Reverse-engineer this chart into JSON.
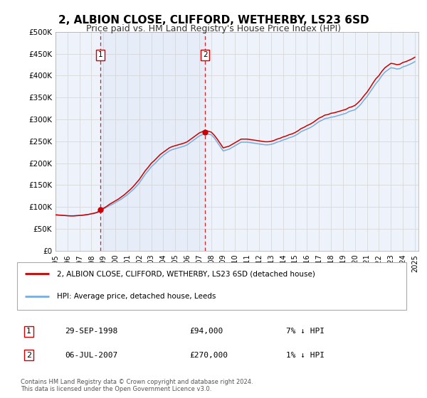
{
  "title": "2, ALBION CLOSE, CLIFFORD, WETHERBY, LS23 6SD",
  "subtitle": "Price paid vs. HM Land Registry's House Price Index (HPI)",
  "title_fontsize": 11,
  "subtitle_fontsize": 9,
  "background_color": "#ffffff",
  "plot_bg_color": "#eef2fa",
  "grid_color": "#d8d8d8",
  "ylim": [
    0,
    500000
  ],
  "ytick_step": 50000,
  "legend_label_red": "2, ALBION CLOSE, CLIFFORD, WETHERBY, LS23 6SD (detached house)",
  "legend_label_blue": "HPI: Average price, detached house, Leeds",
  "transaction1_date": "29-SEP-1998",
  "transaction1_price": 94000,
  "transaction1_hpi": "7% ↓ HPI",
  "transaction2_date": "06-JUL-2007",
  "transaction2_price": 270000,
  "transaction2_hpi": "1% ↓ HPI",
  "marker1_x": 1998.75,
  "marker1_y": 94000,
  "marker2_x": 2007.5,
  "marker2_y": 270000,
  "vline1_x": 1998.75,
  "vline2_x": 2007.5,
  "red_color": "#cc0000",
  "blue_color": "#7aaddc",
  "footer_text": "Contains HM Land Registry data © Crown copyright and database right 2024.\nThis data is licensed under the Open Government Licence v3.0.",
  "xmin": 1995.0,
  "xmax": 2025.3,
  "hpi_x": [
    1995.0,
    1995.25,
    1995.5,
    1995.75,
    1996.0,
    1996.25,
    1996.5,
    1996.75,
    1997.0,
    1997.25,
    1997.5,
    1997.75,
    1998.0,
    1998.25,
    1998.5,
    1998.75,
    1999.0,
    1999.25,
    1999.5,
    1999.75,
    2000.0,
    2000.25,
    2000.5,
    2000.75,
    2001.0,
    2001.25,
    2001.5,
    2001.75,
    2002.0,
    2002.25,
    2002.5,
    2002.75,
    2003.0,
    2003.25,
    2003.5,
    2003.75,
    2004.0,
    2004.25,
    2004.5,
    2004.75,
    2005.0,
    2005.25,
    2005.5,
    2005.75,
    2006.0,
    2006.25,
    2006.5,
    2006.75,
    2007.0,
    2007.25,
    2007.5,
    2007.75,
    2008.0,
    2008.25,
    2008.5,
    2008.75,
    2009.0,
    2009.25,
    2009.5,
    2009.75,
    2010.0,
    2010.25,
    2010.5,
    2010.75,
    2011.0,
    2011.25,
    2011.5,
    2011.75,
    2012.0,
    2012.25,
    2012.5,
    2012.75,
    2013.0,
    2013.25,
    2013.5,
    2013.75,
    2014.0,
    2014.25,
    2014.5,
    2014.75,
    2015.0,
    2015.25,
    2015.5,
    2015.75,
    2016.0,
    2016.25,
    2016.5,
    2016.75,
    2017.0,
    2017.25,
    2017.5,
    2017.75,
    2018.0,
    2018.25,
    2018.5,
    2018.75,
    2019.0,
    2019.25,
    2019.5,
    2019.75,
    2020.0,
    2020.25,
    2020.5,
    2020.75,
    2021.0,
    2021.25,
    2021.5,
    2021.75,
    2022.0,
    2022.25,
    2022.5,
    2022.75,
    2023.0,
    2023.25,
    2023.5,
    2023.75,
    2024.0,
    2024.25,
    2024.5,
    2024.75,
    2025.0
  ],
  "hpi_y": [
    82000,
    81500,
    81000,
    80500,
    80000,
    80000,
    80000,
    80500,
    81000,
    81500,
    82000,
    83000,
    84000,
    85500,
    87000,
    90000,
    95000,
    99000,
    103000,
    106000,
    110000,
    114000,
    118000,
    123000,
    128000,
    134000,
    140000,
    147000,
    155000,
    165000,
    175000,
    183000,
    192000,
    198000,
    205000,
    212000,
    218000,
    223000,
    228000,
    231000,
    233000,
    235000,
    237000,
    239000,
    242000,
    247000,
    252000,
    257000,
    262000,
    265000,
    268000,
    266000,
    265000,
    258000,
    248000,
    238000,
    228000,
    230000,
    232000,
    236000,
    240000,
    244000,
    248000,
    248000,
    248000,
    247000,
    246000,
    245000,
    244000,
    243000,
    242000,
    242000,
    243000,
    245000,
    248000,
    250000,
    253000,
    255000,
    258000,
    260000,
    263000,
    267000,
    272000,
    275000,
    278000,
    281000,
    285000,
    290000,
    295000,
    298000,
    302000,
    303000,
    305000,
    306000,
    308000,
    310000,
    312000,
    314000,
    318000,
    320000,
    322000,
    328000,
    335000,
    344000,
    352000,
    362000,
    372000,
    382000,
    390000,
    400000,
    408000,
    413000,
    418000,
    417000,
    415000,
    416000,
    420000,
    422000,
    425000,
    428000,
    432000
  ],
  "prop_y": [
    82000,
    81500,
    81000,
    80500,
    80000,
    79500,
    79500,
    80000,
    80500,
    81000,
    82000,
    83000,
    84500,
    86000,
    88000,
    94000,
    97000,
    101000,
    106000,
    110000,
    114000,
    118000,
    123000,
    128000,
    134000,
    140000,
    147000,
    155000,
    163000,
    173000,
    183000,
    191000,
    200000,
    206000,
    213000,
    220000,
    225000,
    230000,
    235000,
    238000,
    240000,
    242000,
    244000,
    246000,
    249000,
    254000,
    259000,
    264000,
    269000,
    272000,
    275000,
    273000,
    271000,
    264000,
    255000,
    245000,
    235000,
    237000,
    239000,
    243000,
    247000,
    251000,
    255000,
    255000,
    255000,
    254000,
    253000,
    252000,
    251000,
    250000,
    249000,
    249000,
    250000,
    252000,
    255000,
    257000,
    260000,
    262000,
    265000,
    267000,
    270000,
    274000,
    279000,
    282000,
    286000,
    289000,
    293000,
    298000,
    303000,
    306000,
    310000,
    311000,
    314000,
    315000,
    317000,
    319000,
    321000,
    323000,
    327000,
    329000,
    332000,
    338000,
    345000,
    354000,
    362000,
    372000,
    383000,
    393000,
    400000,
    410000,
    418000,
    423000,
    428000,
    427000,
    425000,
    426000,
    430000,
    432000,
    435000,
    438000,
    442000
  ]
}
